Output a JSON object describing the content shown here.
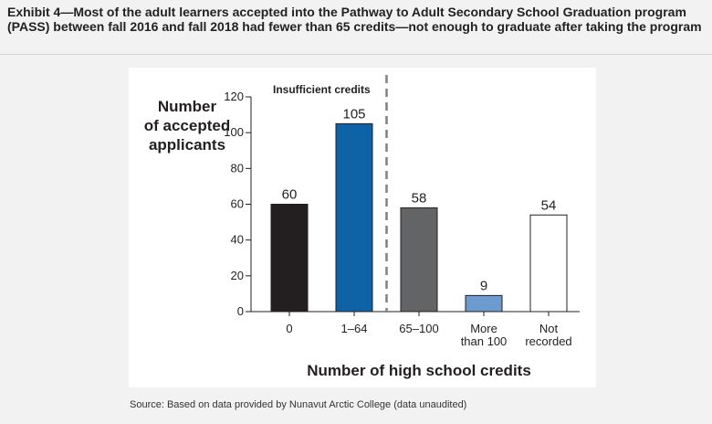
{
  "exhibit": {
    "title": "Exhibit 4—Most of the adult learners accepted into the Pathway to Adult Secondary School Graduation program (PASS) between fall 2016 and fall 2018 had fewer than 65 credits—not enough to graduate after taking the program"
  },
  "chart_data": {
    "type": "bar",
    "categories": [
      "0",
      "1–64",
      "65–100",
      "More than 100",
      "Not recorded"
    ],
    "category_lines": [
      [
        "0"
      ],
      [
        "1–64"
      ],
      [
        "65–100"
      ],
      [
        "More",
        "than 100"
      ],
      [
        "Not",
        "recorded"
      ]
    ],
    "values": [
      60,
      105,
      58,
      9,
      54
    ],
    "bar_colors": [
      "#231f20",
      "#0d63a6",
      "#636466",
      "#6d9bd0",
      "#ffffff"
    ],
    "ylabel_lines": [
      "Number",
      "of accepted",
      "applicants"
    ],
    "xlabel": "Number of high school credits",
    "ylim": [
      0,
      120
    ],
    "yticks": [
      0,
      20,
      40,
      60,
      80,
      100,
      120
    ],
    "annotation": "Insufficient credits",
    "divider_after_category": "1–64",
    "grid": false,
    "legend": "none"
  },
  "source": "Source: Based on data provided by Nunavut Arctic College (data unaudited)"
}
